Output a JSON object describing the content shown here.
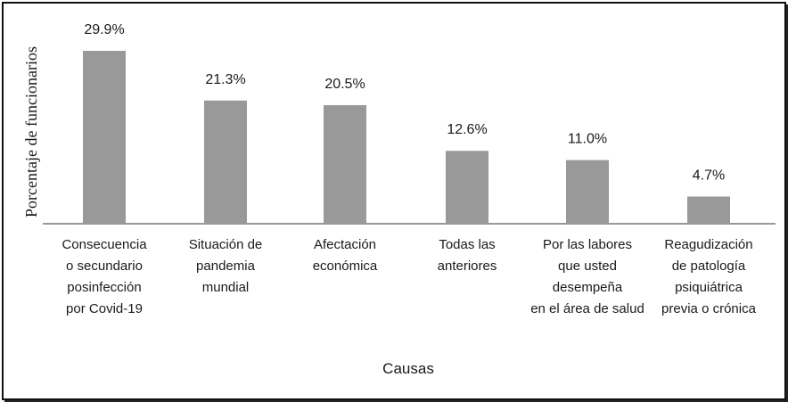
{
  "chart_data": {
    "type": "bar",
    "title": "",
    "xlabel": "Causas",
    "ylabel": "Porcentaje de funcionarios",
    "ylim": [
      0,
      35
    ],
    "grid": false,
    "bar_color": "#999999",
    "categories": [
      [
        "Consecuencia",
        "o secundario",
        "posinfección",
        "por Covid-19"
      ],
      [
        "Situación de",
        "pandemia",
        "mundial"
      ],
      [
        "Afectación",
        "económica"
      ],
      [
        "Todas las",
        "anteriores"
      ],
      [
        "Por las labores",
        "que usted",
        "desempeña",
        "en el área de salud"
      ],
      [
        "Reagudización",
        "de patología",
        "psiquiátrica",
        "previa o crónica"
      ]
    ],
    "values": [
      29.9,
      21.3,
      20.5,
      12.6,
      11.0,
      4.7
    ],
    "value_labels": [
      "29.9%",
      "21.3%",
      "20.5%",
      "12.6%",
      "11.0%",
      "4.7%"
    ]
  }
}
